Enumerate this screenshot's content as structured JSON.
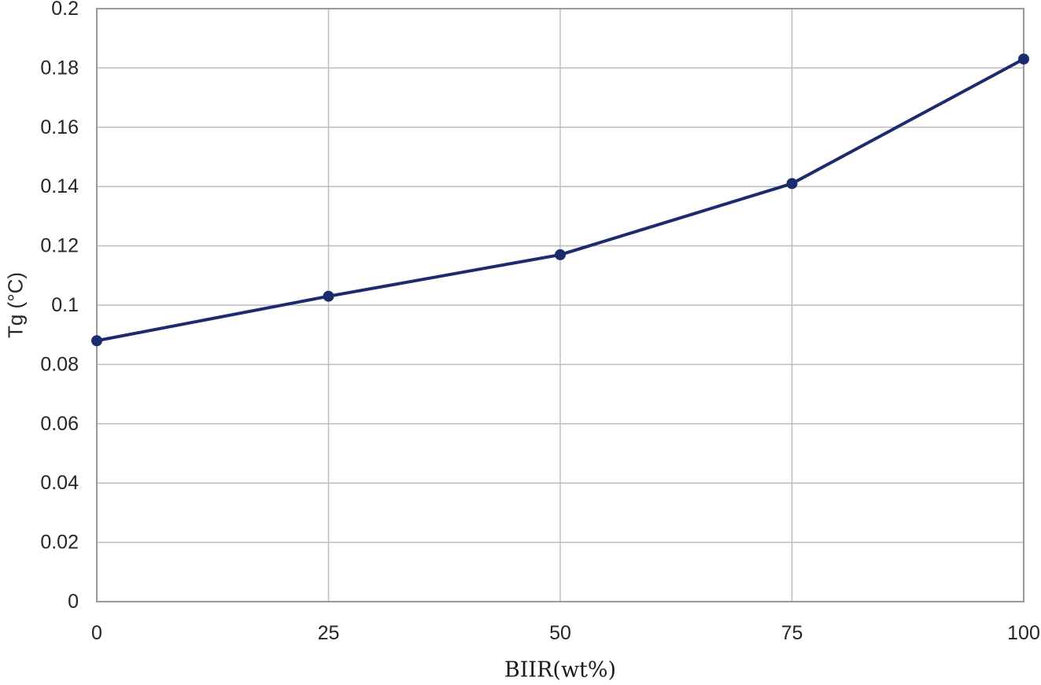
{
  "chart_data": {
    "type": "line",
    "title": "",
    "xlabel": "BIIR(wt%)",
    "ylabel": "Tg (°C)",
    "x": [
      0,
      25,
      50,
      75,
      100
    ],
    "series": [
      {
        "name": "Tg",
        "values": [
          0.088,
          0.103,
          0.117,
          0.141,
          0.183
        ]
      }
    ],
    "xlim": [
      0,
      100
    ],
    "ylim": [
      0,
      0.2
    ],
    "x_tick_values": [
      0,
      25,
      50,
      75,
      100
    ],
    "x_tick_labels": [
      "0",
      "25",
      "50",
      "75",
      "100"
    ],
    "y_tick_values": [
      0,
      0.02,
      0.04,
      0.06,
      0.08,
      0.1,
      0.12,
      0.14,
      0.16,
      0.18,
      0.2
    ],
    "y_tick_labels": [
      "0",
      "0.02",
      "0.04",
      "0.06",
      "0.08",
      "0.1",
      "0.12",
      "0.14",
      "0.16",
      "0.18",
      "0.2"
    ],
    "grid": true,
    "legend": "none",
    "marker": "circle",
    "colors": {
      "line": "#1c2b6d",
      "marker": "#1c2b6d",
      "gridline": "#bdbdbd",
      "border": "#9a9a9a",
      "text": "#262626",
      "background": "#ffffff"
    }
  }
}
